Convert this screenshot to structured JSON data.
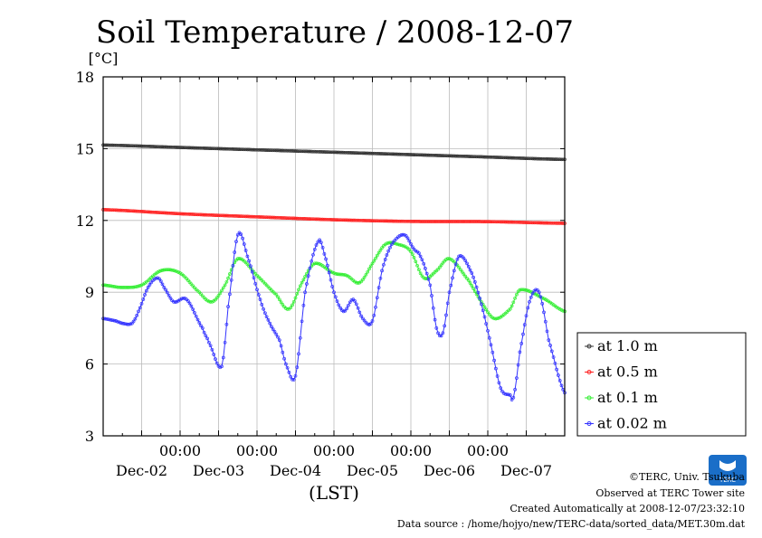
{
  "chart_data": {
    "type": "line",
    "title": "Soil Temperature / 2008-12-07",
    "ylabel": "[°C]",
    "xlabel": "(LST)",
    "ylim": [
      3,
      18
    ],
    "yticks": [
      3,
      6,
      9,
      12,
      15,
      18
    ],
    "x_range_hours": [
      0,
      144
    ],
    "x_tick_times": [
      "00:00",
      "00:00",
      "00:00",
      "00:00",
      "00:00"
    ],
    "x_tick_dates": [
      "Dec-02",
      "Dec-03",
      "Dec-04",
      "Dec-05",
      "Dec-06",
      "Dec-07"
    ],
    "grid": true,
    "legend_position": "right-bottom",
    "series": [
      {
        "name": "at 1.0 m",
        "color": "#333333",
        "x": [
          0,
          24,
          48,
          72,
          96,
          120,
          144
        ],
        "values": [
          15.15,
          15.05,
          14.95,
          14.85,
          14.75,
          14.65,
          14.55
        ]
      },
      {
        "name": "at 0.5 m",
        "color": "#ff2222",
        "x": [
          0,
          24,
          48,
          72,
          96,
          120,
          144
        ],
        "values": [
          12.45,
          12.28,
          12.15,
          12.03,
          11.96,
          11.95,
          11.88
        ]
      },
      {
        "name": "at 0.1 m",
        "color": "#33ee33",
        "x": [
          0,
          6,
          12,
          18,
          24,
          30,
          34,
          38,
          42,
          48,
          54,
          58,
          62,
          66,
          72,
          76,
          80,
          84,
          88,
          92,
          96,
          100,
          104,
          108,
          114,
          118,
          122,
          127,
          130,
          138,
          144
        ],
        "values": [
          9.3,
          9.2,
          9.3,
          9.9,
          9.8,
          9.0,
          8.6,
          9.3,
          10.4,
          9.7,
          8.9,
          8.3,
          9.4,
          10.2,
          9.8,
          9.7,
          9.4,
          10.2,
          11.0,
          11.0,
          10.7,
          9.6,
          9.9,
          10.4,
          9.5,
          8.6,
          7.9,
          8.3,
          9.1,
          8.7,
          8.2
        ]
      },
      {
        "name": "at 0.02 m",
        "color": "#3333ff",
        "x": [
          0,
          4,
          6,
          9,
          11,
          14,
          17,
          19,
          22,
          26,
          31,
          33,
          37,
          39,
          42,
          45,
          49,
          52,
          55,
          57,
          60,
          63,
          67,
          69,
          72,
          75,
          78,
          81,
          84,
          87,
          90,
          94,
          97,
          99,
          102,
          104,
          106,
          108,
          111,
          115,
          118,
          121,
          124,
          127,
          128,
          130,
          133,
          136,
          139,
          144
        ],
        "values": [
          7.9,
          7.8,
          7.7,
          7.7,
          8.2,
          9.2,
          9.6,
          9.2,
          8.6,
          8.7,
          7.5,
          6.9,
          5.9,
          8.4,
          11.4,
          10.5,
          8.7,
          7.7,
          7.0,
          6.0,
          5.5,
          9.0,
          11.1,
          10.6,
          9.0,
          8.2,
          8.7,
          7.9,
          7.8,
          9.9,
          11.0,
          11.4,
          10.8,
          10.5,
          9.3,
          7.5,
          7.3,
          9.0,
          10.5,
          9.8,
          8.5,
          6.8,
          5.0,
          4.7,
          4.6,
          6.5,
          8.6,
          9.0,
          7.0,
          4.8
        ]
      }
    ]
  },
  "credits": {
    "copyright": "©TERC, Univ. Tsukuba",
    "observed": "Observed at TERC Tower site",
    "created": "Created Automatically at 2008-12-07/23:32:10",
    "source": "Data source : /home/hojyo/new/TERC-data/sorted_data/MET.30m.dat"
  },
  "logo": {
    "text": "TERC",
    "color": "#1a6ec8"
  }
}
